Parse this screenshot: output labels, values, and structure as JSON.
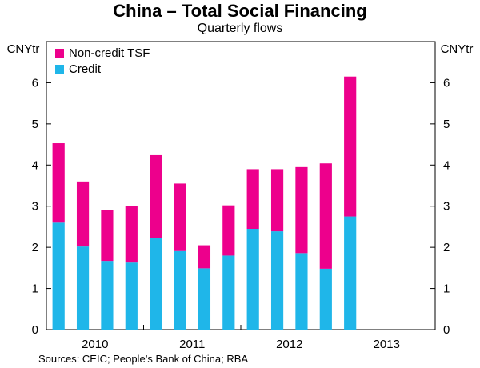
{
  "chart_data": {
    "type": "bar",
    "stacked": true,
    "title": "China – Total Social Financing",
    "subtitle": "Quarterly flows",
    "ylabel_left": "CNYtr",
    "ylabel_right": "CNYtr",
    "ylim": [
      0,
      7
    ],
    "yticks": [
      0,
      1,
      2,
      3,
      4,
      5,
      6
    ],
    "year_labels": [
      "2010",
      "2011",
      "2012",
      "2013"
    ],
    "categories": [
      "2010 Q1",
      "2010 Q2",
      "2010 Q3",
      "2010 Q4",
      "2011 Q1",
      "2011 Q2",
      "2011 Q3",
      "2011 Q4",
      "2012 Q1",
      "2012 Q2",
      "2012 Q3",
      "2012 Q4",
      "2013 Q1",
      "2013 Q2",
      "2013 Q3",
      "2013 Q4"
    ],
    "series": [
      {
        "name": "Credit",
        "color": "#1fb6e9",
        "values": [
          2.6,
          2.02,
          1.67,
          1.63,
          2.22,
          1.91,
          1.49,
          1.8,
          2.45,
          2.39,
          1.86,
          1.48,
          2.75,
          null,
          null,
          null
        ]
      },
      {
        "name": "Non-credit TSF",
        "color": "#ed008c",
        "values": [
          1.93,
          1.58,
          1.24,
          1.37,
          2.02,
          1.64,
          0.56,
          1.22,
          1.45,
          1.51,
          2.09,
          2.56,
          3.4,
          null,
          null,
          null
        ]
      }
    ],
    "legend": [
      "Non-credit TSF",
      "Credit"
    ],
    "legend_position": "top-left",
    "source": "Sources: CEIC; People’s Bank of China; RBA"
  }
}
